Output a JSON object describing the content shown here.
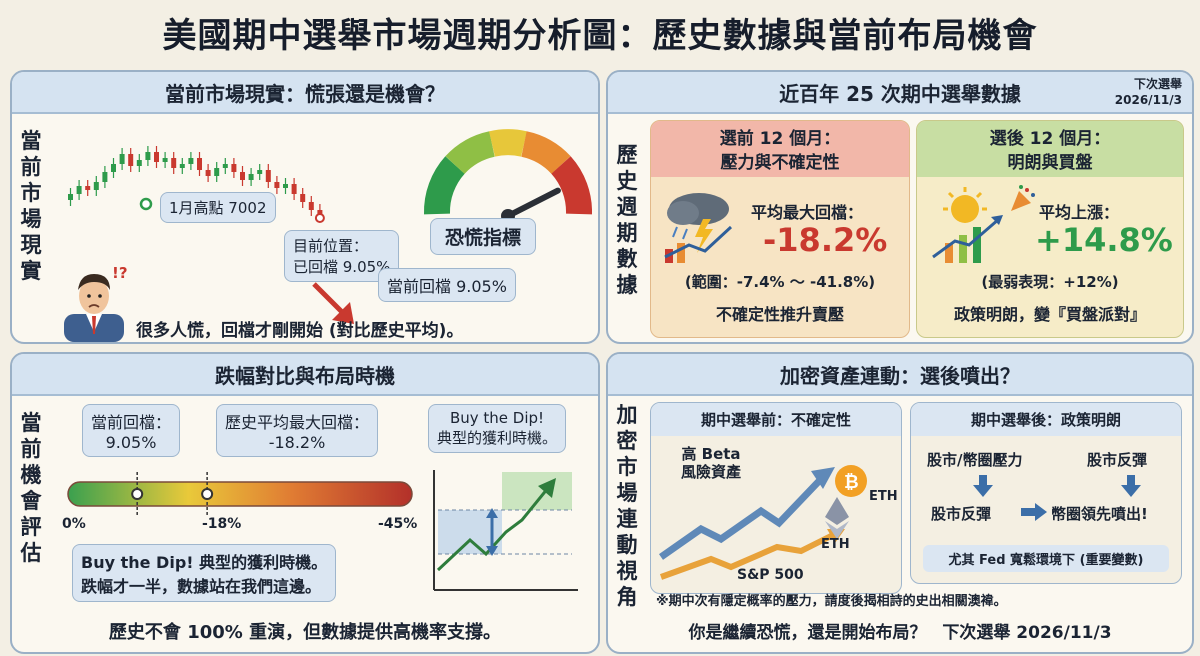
{
  "title": "美國期中選舉市場週期分析圖：歷史數據與當前布局機會",
  "panel1": {
    "header": "當前市場現實：慌張還是機會？",
    "vlabel": "當前市場現實",
    "high_label": "1月高點 7002",
    "position_label_line1": "目前位置：",
    "position_label_line2": "已回檔 9.05%",
    "gauge_label": "恐慌指標",
    "current_pullback": "當前回檔 9.05%",
    "caption": "很多人慌，回檔才剛開始 (對比歷史平均)。",
    "fear_level": 0.85,
    "colors": {
      "red": "#c9392f",
      "green": "#2e9b4b"
    }
  },
  "panel2": {
    "header": "近百年 25 次期中選舉數據",
    "next_label": "下次選舉",
    "next_date": "2026/11/3",
    "vlabel": "歷史週期數據",
    "before": {
      "head1": "選前 12 個月：",
      "head2": "壓力與不確定性",
      "metric_label": "平均最大回檔：",
      "metric_value": "-18.2%",
      "range": "(範圍：-7.4% ～ -41.8%)",
      "footer": "不確定性推升賣壓"
    },
    "after": {
      "head1": "選後 12 個月：",
      "head2": "明朗與買盤",
      "metric_label": "平均上漲：",
      "metric_value": "+14.8%",
      "range": "(最弱表現：+12%)",
      "footer": "政策明朗，變『買盤派對』"
    }
  },
  "panel3": {
    "header": "跌幅對比與布局時機",
    "vlabel": "當前機會評估",
    "current_line1": "當前回檔：",
    "current_line2": "9.05%",
    "hist_line1": "歷史平均最大回檔：",
    "hist_line2": "-18.2%",
    "buy_line1": "Buy the Dip!",
    "buy_line2": "典型的獲利時機。",
    "scale_0": "0%",
    "scale_mid": "-18%",
    "scale_max": "-45%",
    "current_value": 9.05,
    "hist_value": 18.2,
    "scale_max_value": 45,
    "note_line1": "Buy the Dip! 典型的獲利時機。",
    "note_line2": "跌幅才一半，數據站在我們這邊。",
    "bottom": "歷史不會 100% 重演，但數據提供高機率支撐。"
  },
  "panel4": {
    "header": "加密資產連動：選後噴出？",
    "vlabel": "加密市場連動視角",
    "left_head": "期中選舉前：不確定性",
    "high_beta_line1": "高 Beta",
    "high_beta_line2": "風險資產",
    "eth_label_1": "ETH",
    "eth_label_2": "ETH",
    "sp_label": "S&P 500",
    "right_head": "期中選舉後：政策明朗",
    "flow_a": "股市/幣圈壓力",
    "flow_b": "股市反彈",
    "flow_c": "股市反彈",
    "flow_d": "幣圈領先噴出!",
    "fed_note": "尤其 Fed 寬鬆環境下 (重要變數)",
    "footnote": "※期中次有隱定概率的壓力，請度後揭相詩的史出相關澳褘。",
    "bottom_q": "你是繼續恐慌，還是開始布局？",
    "bottom_date": "下次選舉 2026/11/3"
  }
}
